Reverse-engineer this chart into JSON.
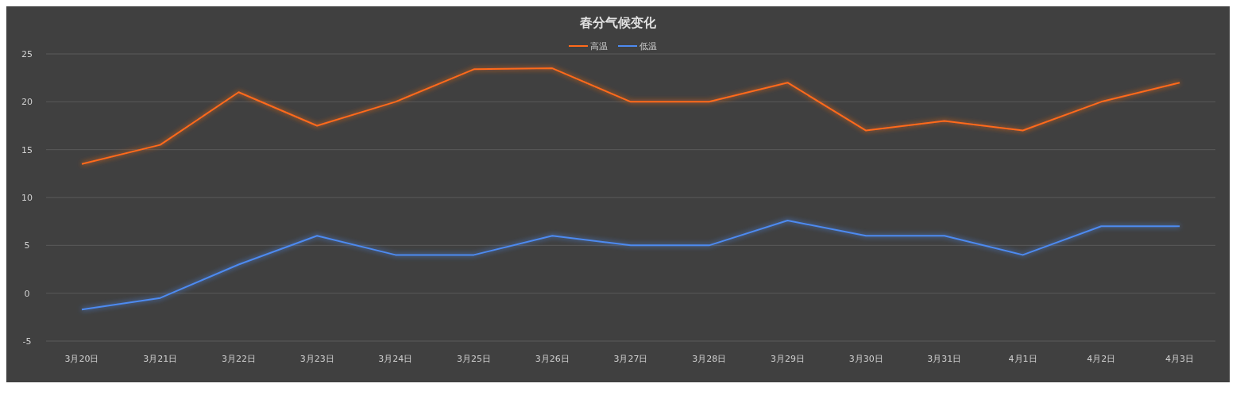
{
  "chart_data": {
    "type": "line",
    "title": "春分气候变化",
    "categories": [
      "3月20日",
      "3月21日",
      "3月22日",
      "3月23日",
      "3月24日",
      "3月25日",
      "3月26日",
      "3月27日",
      "3月28日",
      "3月29日",
      "3月30日",
      "3月31日",
      "4月1日",
      "4月2日",
      "4月3日"
    ],
    "series": [
      {
        "name": "高温",
        "color": "#ff6a1a",
        "values": [
          13.5,
          15.5,
          21,
          17.5,
          20,
          23.4,
          23.5,
          20,
          20,
          22,
          17,
          18,
          17,
          20,
          22
        ]
      },
      {
        "name": "低温",
        "color": "#4d8af0",
        "values": [
          -1.7,
          -0.5,
          3,
          6,
          4,
          4,
          6,
          5,
          5,
          7.6,
          6,
          6,
          4,
          7,
          7
        ]
      }
    ],
    "ylim": [
      -5,
      25
    ],
    "yticks": [
      -5,
      0,
      5,
      10,
      15,
      20,
      25
    ],
    "grid": "y",
    "legend": "top",
    "marker": "none",
    "line_style": "solid"
  }
}
